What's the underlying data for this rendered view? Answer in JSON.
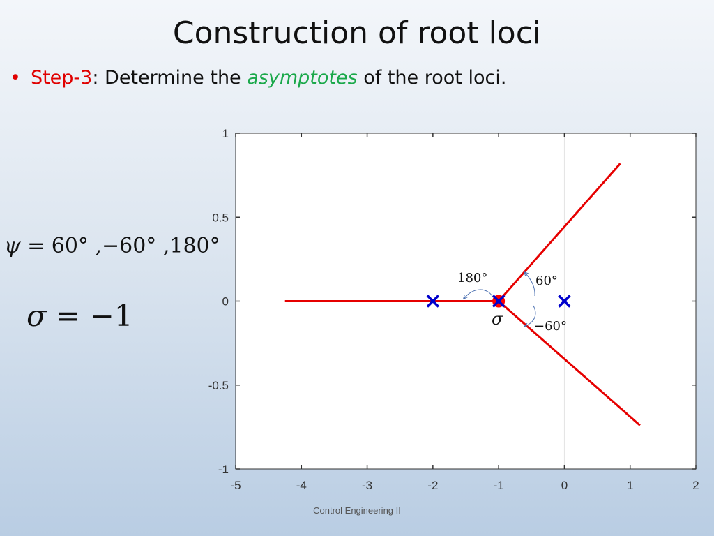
{
  "slide": {
    "title": "Construction of root loci",
    "bullet": {
      "step": "Step-3",
      "text_before": ": Determine the ",
      "emphasis": "asymptotes",
      "text_after": " of the root loci."
    },
    "footer": "Control Engineering II"
  },
  "equations": {
    "psi_symbol": "ψ",
    "psi_values": "= 60° ,−60° ,180°",
    "sigma_symbol": "σ",
    "sigma_value": "= −1"
  },
  "colors": {
    "locus": "#e60000",
    "poles": "#0000cc",
    "centroid": "#ff0000",
    "annotation_arrow": "#4a6fb0"
  },
  "chart_data": {
    "type": "line",
    "xlim": [
      -5,
      2
    ],
    "ylim": [
      -1,
      1
    ],
    "x_ticks": [
      "-5",
      "-4",
      "-3",
      "-2",
      "-1",
      "0",
      "1",
      "2"
    ],
    "y_ticks": [
      "-1",
      "-0.5",
      "0",
      "0.5",
      "1"
    ],
    "grid": true,
    "series": [
      {
        "values": [
          [
            -4.25,
            0
          ],
          [
            -1,
            0
          ]
        ]
      },
      {
        "values": [
          [
            -1,
            0
          ],
          [
            0.85,
            0.82
          ]
        ]
      },
      {
        "values": [
          [
            -1,
            0
          ],
          [
            1.15,
            -0.74
          ]
        ]
      }
    ],
    "poles": [
      [
        -2,
        0
      ],
      [
        -1,
        0
      ],
      [
        0,
        0
      ]
    ],
    "centroid": [
      -1,
      0
    ],
    "annotations": {
      "angle_180": "180°",
      "angle_60": "60°",
      "angle_neg60": "−60°",
      "centroid_label": "σ"
    }
  }
}
